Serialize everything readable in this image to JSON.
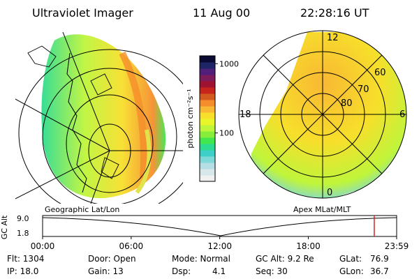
{
  "header": {
    "instrument": "Ultraviolet Imager",
    "date": "11 Aug 00",
    "time": "22:28:16 UT"
  },
  "colorbar": {
    "unit_label": "photon cm⁻²s⁻¹",
    "ticks": [
      "1000",
      "100"
    ],
    "tick_values": [
      1000,
      100
    ],
    "min": 20,
    "max": 1300,
    "colors": [
      "#f0f0f0",
      "#d7e7ea",
      "#b5dfe4",
      "#7fd8d8",
      "#3fcfc9",
      "#2ddc91",
      "#42e64e",
      "#86ee3a",
      "#bff53b",
      "#e9f52b",
      "#f7df2b",
      "#f8b833",
      "#f58d2c",
      "#d25a1f",
      "#c7251b",
      "#a01231",
      "#7c1c5a",
      "#4f1f7a",
      "#1e2566",
      "#0a0a33"
    ]
  },
  "left_panel": {
    "label": "Geographic Lat/Lon"
  },
  "right_panel": {
    "label": "Apex MLat/MLT",
    "mlt_labels": {
      "top": "12",
      "left": "18",
      "right": "6",
      "bottom": "0"
    },
    "lat_labels": [
      "60",
      "70",
      "80"
    ]
  },
  "timeline": {
    "ylabel": "GC Alt",
    "yticks": [
      "9.0",
      "1.8"
    ],
    "xticks": [
      "00:00",
      "06:00",
      "12:00",
      "18:00",
      "23:59"
    ],
    "marker_time": "22:28",
    "marker_color": "#e02020"
  },
  "footer": {
    "flt": "Flt: 1304",
    "ip": "IP: 18.0",
    "door": "Door: Open",
    "gain": "Gain: 13",
    "mode": "Mode: Normal",
    "dsp": "Dsp:",
    "dsp_val": "4.1",
    "gc_alt": "GC Alt: 9.2 Re",
    "seq": "Seq: 30",
    "glat": "GLat:",
    "glat_val": "76.9",
    "glon": "GLon:",
    "glon_val": "36.7"
  }
}
